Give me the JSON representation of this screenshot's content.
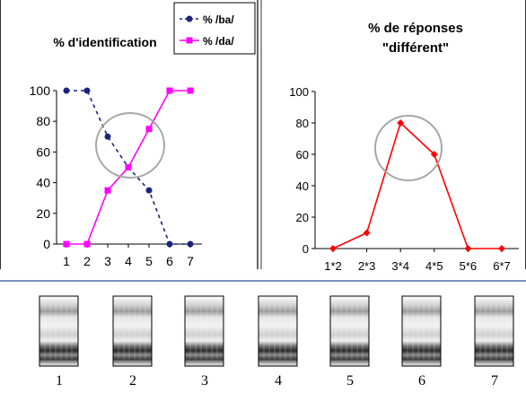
{
  "chart_data": [
    {
      "type": "line",
      "title": "% d'identification",
      "categories": [
        "1",
        "2",
        "3",
        "4",
        "5",
        "6",
        "7"
      ],
      "ylim": [
        0,
        100
      ],
      "yticks": [
        "0",
        "20",
        "40",
        "60",
        "80",
        "100"
      ],
      "legend": "top-right",
      "series": [
        {
          "name": "% /ba/",
          "color": "#1a237e",
          "style": "dashed",
          "marker": "circle",
          "values": [
            100,
            100,
            70,
            50,
            35,
            0,
            0
          ]
        },
        {
          "name": "% /da/",
          "color": "#ff00ff",
          "style": "solid",
          "marker": "square",
          "values": [
            0,
            0,
            35,
            50,
            75,
            100,
            100
          ]
        }
      ],
      "annotation": "ellipse"
    },
    {
      "type": "line",
      "title_lines": [
        "% de réponses",
        "\"différent\""
      ],
      "categories": [
        "1*2",
        "2*3",
        "3*4",
        "4*5",
        "5*6",
        "6*7"
      ],
      "ylim": [
        0,
        100
      ],
      "yticks": [
        "0",
        "20",
        "40",
        "60",
        "80",
        "100"
      ],
      "series": [
        {
          "color": "#ff0000",
          "style": "solid",
          "marker": "diamond",
          "values": [
            0,
            10,
            80,
            60,
            0,
            0
          ]
        }
      ],
      "annotation": "ellipse"
    }
  ],
  "spectrograms": {
    "labels": [
      "1",
      "2",
      "3",
      "4",
      "5",
      "6",
      "7"
    ]
  },
  "colors": {
    "border": "#333333",
    "divider": "#4a6fa5",
    "ellipse": "#a6a6a6"
  }
}
